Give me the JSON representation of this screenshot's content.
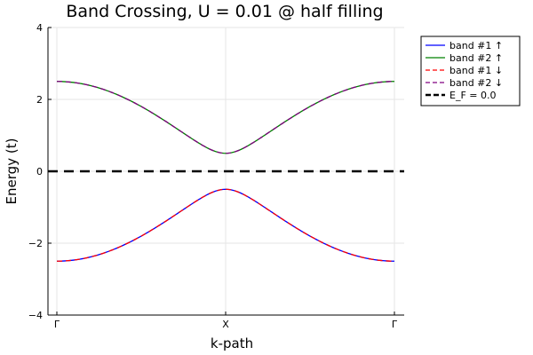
{
  "chart_data": {
    "type": "line",
    "title": "Band Crossing, U = 0.01 @ half filling",
    "xlabel": "k-path",
    "ylabel": "Energy (t)",
    "xticks": [
      "Γ",
      "X",
      "Γ"
    ],
    "ylim": [
      -4,
      4
    ],
    "yticks": [
      -4,
      -2,
      0,
      2,
      4
    ],
    "ytick_labels": [
      "−4",
      "−2",
      "0",
      "2",
      "4"
    ],
    "grid": true,
    "legend_position": "outside-top-right",
    "band_model": {
      "k_min": 0,
      "k_max": 2,
      "gap_half": 0.5,
      "max_energy": 2.5
    },
    "series": [
      {
        "name": "band #1 ↑",
        "color": "#0000ff",
        "style": "solid",
        "branch": "lower"
      },
      {
        "name": "band #2 ↑",
        "color": "#008000",
        "style": "solid",
        "branch": "upper"
      },
      {
        "name": "band #1 ↓",
        "color": "#ff0000",
        "style": "dashed",
        "branch": "lower"
      },
      {
        "name": "band #2 ↓",
        "color": "#800080",
        "style": "dashed",
        "branch": "upper"
      }
    ],
    "hlines": [
      {
        "name": "E_F = 0.0",
        "y": 0.0,
        "color": "#000000",
        "style": "dashed-thick"
      }
    ]
  }
}
